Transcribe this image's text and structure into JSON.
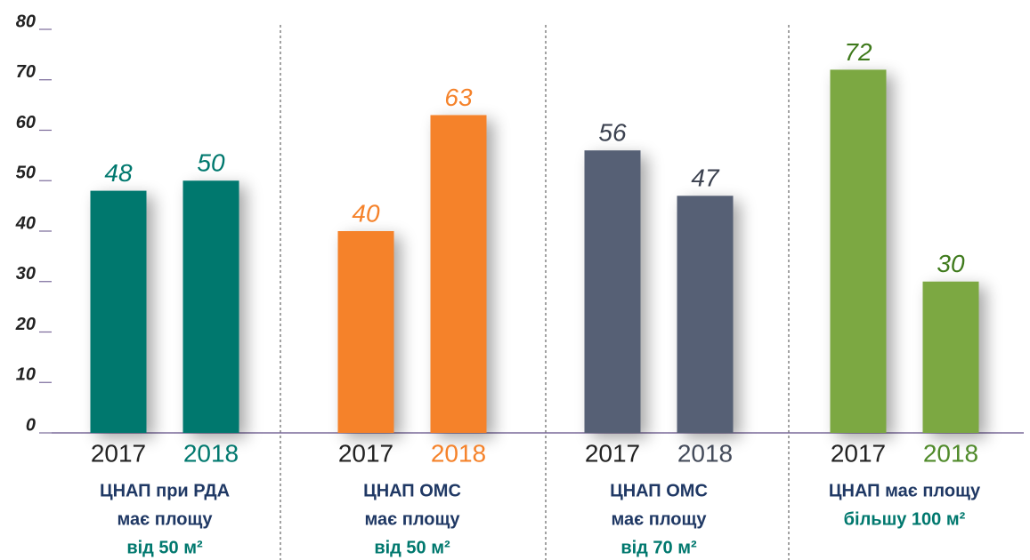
{
  "chart_data": {
    "type": "bar",
    "ylim": [
      0,
      80
    ],
    "yticks": [
      0,
      10,
      20,
      30,
      40,
      50,
      60,
      70,
      80
    ],
    "groups": [
      {
        "label": [
          "ЦНАП при РДА",
          "має площу",
          "від 50 м²"
        ],
        "label_colors": [
          "#1f3864",
          "#1f3864",
          "#00786e"
        ],
        "categories": [
          "2017",
          "2018"
        ],
        "category_colors": [
          "#222222",
          "#00786e"
        ],
        "values": [
          48,
          50
        ],
        "color": "#00786e",
        "value_color": "#00786e"
      },
      {
        "label": [
          "ЦНАП ОМС",
          "має площу",
          "від 50 м²"
        ],
        "label_colors": [
          "#1f3864",
          "#1f3864",
          "#00786e"
        ],
        "categories": [
          "2017",
          "2018"
        ],
        "category_colors": [
          "#222222",
          "#f5822a"
        ],
        "values": [
          40,
          63
        ],
        "color": "#f5822a",
        "value_color": "#f5822a"
      },
      {
        "label": [
          "ЦНАП ОМС",
          "має площу",
          "від 70 м²"
        ],
        "label_colors": [
          "#1f3864",
          "#1f3864",
          "#00786e"
        ],
        "categories": [
          "2017",
          "2018"
        ],
        "category_colors": [
          "#222222",
          "#444b5a"
        ],
        "values": [
          56,
          47
        ],
        "color": "#576074",
        "value_color": "#3c4250"
      },
      {
        "label": [
          "ЦНАП має площу",
          "більшу 100 м²"
        ],
        "label_colors": [
          "#1f3864",
          "#00786e"
        ],
        "categories": [
          "2017",
          "2018"
        ],
        "category_colors": [
          "#222222",
          "#4f8a2a"
        ],
        "values": [
          72,
          30
        ],
        "color": "#7ba843",
        "value_color": "#3f7a1c"
      }
    ]
  }
}
